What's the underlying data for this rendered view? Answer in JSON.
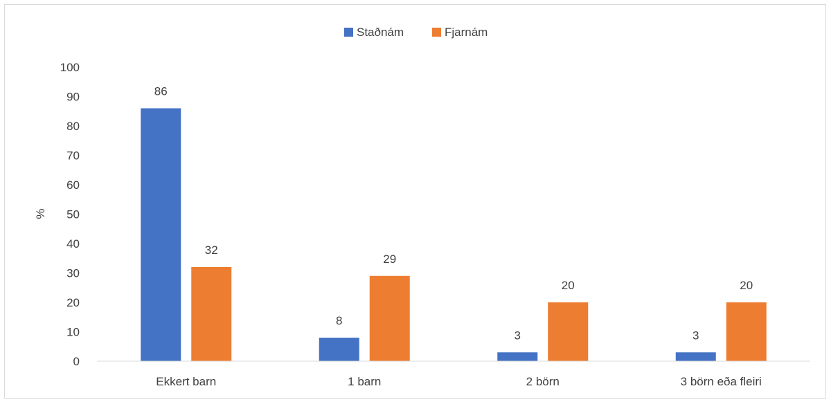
{
  "chart_data": {
    "type": "bar",
    "categories": [
      "Ekkert barn",
      "1 barn",
      "2 börn",
      "3 börn eða fleiri"
    ],
    "series": [
      {
        "name": "Staðnám",
        "values": [
          86,
          8,
          3,
          3
        ],
        "color": "#4472C4"
      },
      {
        "name": "Fjarnám",
        "values": [
          32,
          29,
          20,
          20
        ],
        "color": "#ED7D31"
      }
    ],
    "ylabel": "%",
    "ylim": [
      0,
      100
    ],
    "yticks": [
      0,
      10,
      20,
      30,
      40,
      50,
      60,
      70,
      80,
      90,
      100
    ],
    "legend_position": "top",
    "grid": false,
    "data_labels": true
  }
}
